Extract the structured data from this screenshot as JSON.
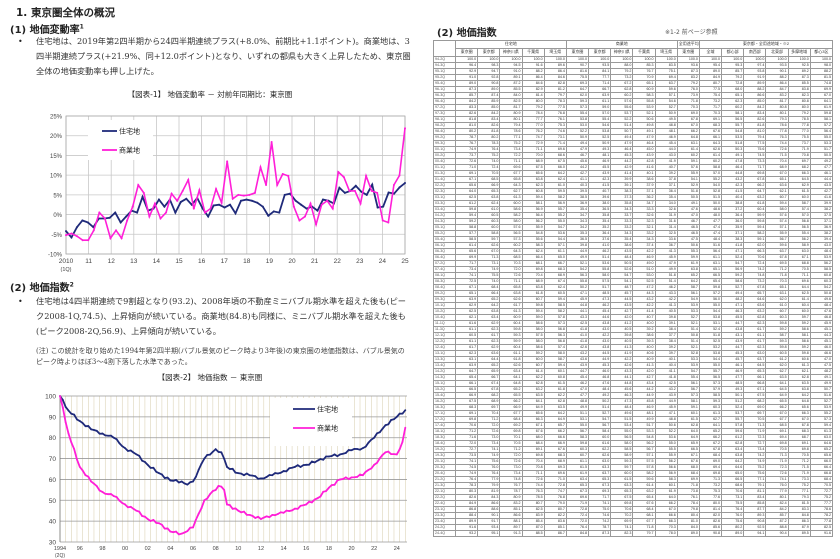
{
  "left": {
    "section_title": "1. 東京圏全体の概況",
    "s1": {
      "heading": "(1) 地価変動率",
      "footnote": "1",
      "bullet": "•",
      "paragraph": "住宅地は、2019年第2四半期から24四半期連続プラス(+8.0%、前期比+1.1ポイント)。商業地は、3四半期連続プラス(+21.9%、同+12.0ポイント)となり、いずれの都県も大きく上昇したため、東京圏全体の地価変動率も押し上げた。",
      "figure_title": "【図表-1】 地価変動率 － 対前年同期比：東京圏"
    },
    "s2": {
      "heading": "(2) 地価指数",
      "footnote": "2",
      "bullet": "•",
      "paragraph": "住宅地は4四半期連続で9割超となり(93.2)、2008年頃の不動産ミニバブル期水準を超えた後も(ピーク2008-1Q,74.5)、上昇傾向が続いている。商業地(84.8)も同様に、ミニバブル期水準を超えた後も(ピーク2008-2Q,56.9)、上昇傾向が続いている。",
      "note": "(注) この統計を取り始めた1994年第2四半期(バブル景気のピーク時より3年後)の東京圏の地価指数は、バブル景気のピーク時よりほぼ3～4割下落した水準であった。",
      "figure_title": "【図表-2】 地価指数 － 東京圏"
    }
  },
  "right": {
    "title": "(2) 地価指数",
    "ref": "※1-2 前ページ参照",
    "groups": [
      "住宅地",
      "商業地",
      "全用途平均",
      "東京都・全用途地域・※2"
    ],
    "columns": [
      "東京圏",
      "東京都",
      "神奈川県",
      "千葉県",
      "埼玉県",
      "東京圏",
      "東京都",
      "神奈川県",
      "千葉県",
      "埼玉県",
      "東京圏",
      "全域",
      "都心部",
      "南西部",
      "北東部",
      "多摩地域",
      "都心3区"
    ]
  },
  "colors": {
    "residential": "#1f2a7a",
    "commercial": "#ff1fd8",
    "grid": "#c8c8c8"
  },
  "chart_data": [
    {
      "type": "line",
      "title": "【図表-1】 地価変動率 － 対前年同期比：東京圏",
      "xlabel": "",
      "ylabel": "",
      "ylim": [
        -10,
        25
      ],
      "yticks": [
        "-10%",
        "-5%",
        "0%",
        "5%",
        "10%",
        "15%",
        "20%",
        "25%"
      ],
      "xticks": [
        "2010\n(1Q)",
        "11",
        "12",
        "13",
        "14",
        "15",
        "16",
        "17",
        "18",
        "19",
        "20",
        "21",
        "22",
        "23",
        "24",
        "25"
      ],
      "legend": [
        "住宅地",
        "商業地"
      ],
      "legend_position": "upper-left",
      "grid": true,
      "series": [
        {
          "name": "住宅地",
          "values": [
            -4.2,
            -5.8,
            -3.2,
            -1.5,
            -2.0,
            -3.2,
            -1.0,
            -1.0,
            -0.8,
            0.5,
            -2.0,
            -0.5,
            1.0,
            0.5,
            4.5,
            1.0,
            1.5,
            3.8,
            2.0,
            3.8,
            0.5,
            3.2,
            4.0,
            2.5,
            4.2,
            1.5,
            -0.5,
            2.3,
            2.5,
            1.8,
            2.5,
            0.3,
            3.5,
            3.8,
            3.5,
            3.0,
            2.0,
            -0.3,
            0.8,
            0.5,
            5.0,
            5.3,
            3.5,
            2.5,
            1.5,
            2.0,
            1.0,
            3.8,
            3.5,
            2.8,
            6.8,
            5.5,
            6.0,
            7.3,
            5.8,
            5.0,
            7.6,
            1.8,
            2.0,
            5.6,
            5.3,
            6.9,
            8.0
          ]
        },
        {
          "name": "商業地",
          "values": [
            -5.2,
            -4.8,
            -5.5,
            -6.5,
            -6.5,
            -4.0,
            0.5,
            -1.0,
            -6.0,
            -4.0,
            -6.0,
            -1.5,
            2.0,
            7.5,
            5.5,
            -0.5,
            2.8,
            -1.0,
            0.5,
            5.3,
            3.5,
            6.0,
            8.8,
            1.5,
            6.2,
            0.5,
            1.5,
            6.5,
            3.0,
            13.5,
            4.0,
            5.0,
            4.8,
            5.0,
            5.5,
            12.0,
            7.5,
            18.4,
            7.5,
            10.3,
            9.8,
            2.0,
            -1.5,
            -0.5,
            2.8,
            -2.5,
            2.5,
            3.5,
            1.5,
            10.8,
            9.5,
            6.0,
            6.0,
            2.8,
            9.8,
            6.0,
            5.5,
            -1.5,
            -2.0,
            7.5,
            9.9,
            21.9
          ]
        }
      ]
    },
    {
      "type": "line",
      "title": "【図表-2】 地価指数 － 東京圏",
      "xlabel": "",
      "ylabel": "",
      "ylim": [
        30,
        100
      ],
      "yticks": [
        "30",
        "40",
        "50",
        "60",
        "70",
        "80",
        "90",
        "100"
      ],
      "xticks": [
        "1994\n(2Q)",
        "96",
        "98",
        "00",
        "02",
        "04",
        "06",
        "08",
        "10",
        "12",
        "14",
        "16",
        "18",
        "20",
        "22",
        "24"
      ],
      "legend": [
        "住宅地",
        "商業地"
      ],
      "legend_position": "upper-right",
      "grid": true,
      "series": [
        {
          "name": "住宅地",
          "points": [
            [
              1994.25,
              100
            ],
            [
              1995,
              93
            ],
            [
              1996,
              88
            ],
            [
              1997,
              84
            ],
            [
              1998,
              82
            ],
            [
              1999,
              80
            ],
            [
              2000,
              75
            ],
            [
              2001,
              72
            ],
            [
              2002,
              67
            ],
            [
              2003,
              63
            ],
            [
              2004,
              59.5
            ],
            [
              2005,
              59
            ],
            [
              2005.5,
              57.5
            ],
            [
              2006,
              59
            ],
            [
              2007,
              70
            ],
            [
              2008,
              74.5
            ],
            [
              2008.5,
              73
            ],
            [
              2009,
              66
            ],
            [
              2010,
              63
            ],
            [
              2011,
              62
            ],
            [
              2012,
              60.5
            ],
            [
              2013,
              62
            ],
            [
              2014,
              64
            ],
            [
              2015,
              66
            ],
            [
              2016,
              67
            ],
            [
              2017,
              69
            ],
            [
              2018,
              71
            ],
            [
              2019,
              72
            ],
            [
              2020,
              74
            ],
            [
              2021,
              75
            ],
            [
              2022,
              80
            ],
            [
              2023,
              86
            ],
            [
              2024,
              90
            ],
            [
              2024.75,
              93.2
            ]
          ]
        },
        {
          "name": "商業地",
          "points": [
            [
              1994.25,
              100
            ],
            [
              1995,
              82
            ],
            [
              1996,
              66
            ],
            [
              1997,
              59
            ],
            [
              1998,
              54
            ],
            [
              1999,
              52
            ],
            [
              2000,
              48
            ],
            [
              2001,
              45
            ],
            [
              2002,
              41
            ],
            [
              2003,
              39
            ],
            [
              2004,
              35
            ],
            [
              2005,
              34
            ],
            [
              2006,
              37
            ],
            [
              2007,
              50
            ],
            [
              2008.25,
              56.9
            ],
            [
              2008.75,
              55
            ],
            [
              2009,
              48
            ],
            [
              2010,
              45
            ],
            [
              2011,
              43
            ],
            [
              2012,
              41
            ],
            [
              2013,
              43
            ],
            [
              2014,
              44
            ],
            [
              2015,
              46
            ],
            [
              2016,
              48
            ],
            [
              2017,
              51
            ],
            [
              2018,
              56
            ],
            [
              2019,
              60
            ],
            [
              2020,
              61
            ],
            [
              2021,
              62
            ],
            [
              2022,
              67
            ],
            [
              2023,
              73
            ],
            [
              2024,
              72
            ],
            [
              2024.5,
              78
            ],
            [
              2024.75,
              84.8
            ]
          ]
        }
      ]
    }
  ]
}
